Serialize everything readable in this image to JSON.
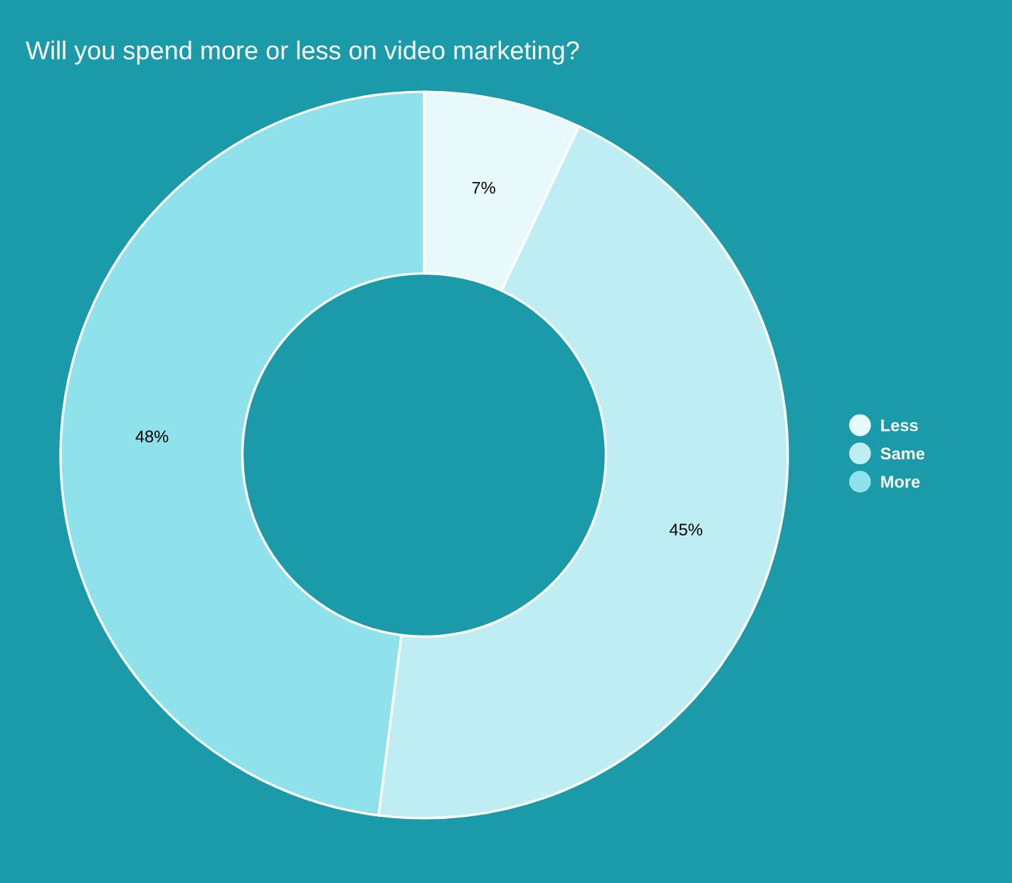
{
  "chart_data": {
    "type": "donut",
    "title": "Will you spend more or less on video marketing?",
    "categories": [
      "Less",
      "Same",
      "More"
    ],
    "values": [
      7,
      45,
      48
    ],
    "colors": [
      "#e8f9fc",
      "#bfedf4",
      "#8fe1ec"
    ],
    "value_labels": [
      "7%",
      "45%",
      "48%"
    ],
    "legend": "right"
  }
}
